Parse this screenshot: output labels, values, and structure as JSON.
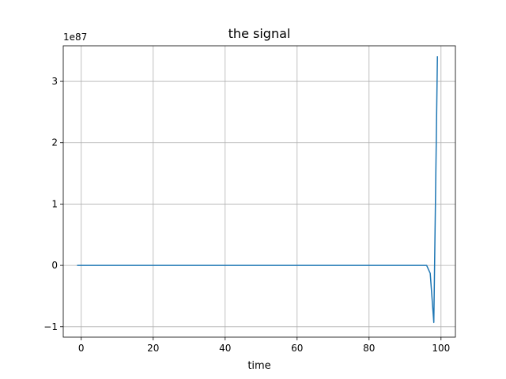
{
  "chart_data": {
    "type": "line",
    "title": "the signal",
    "xlabel": "time",
    "ylabel": "",
    "y_offset_label": "1e87",
    "y_scale_exponent": 87,
    "xlim": [
      -5,
      104
    ],
    "ylim": [
      -1.17,
      3.58
    ],
    "xticks": [
      0,
      20,
      40,
      60,
      80,
      100
    ],
    "yticks": [
      -1,
      0,
      1,
      2,
      3
    ],
    "xtick_labels": [
      "0",
      "20",
      "40",
      "60",
      "80",
      "100"
    ],
    "ytick_labels": [
      "−1",
      "0",
      "1",
      "2",
      "3"
    ],
    "grid": true,
    "series_color": "#1f77b4",
    "series": [
      {
        "x": [
          -1,
          0,
          10,
          20,
          30,
          40,
          50,
          60,
          70,
          80,
          90,
          95,
          96,
          97,
          98,
          99
        ],
        "y": [
          0,
          0,
          0,
          0,
          0,
          0,
          0,
          0,
          0,
          0,
          0,
          0,
          0,
          -0.13,
          -0.93,
          3.4
        ]
      }
    ]
  }
}
